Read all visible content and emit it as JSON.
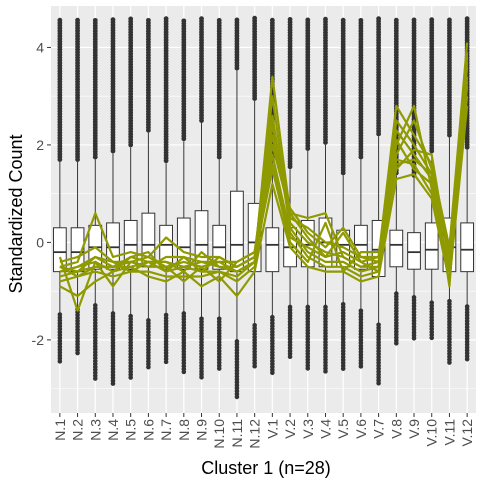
{
  "chart_data": {
    "type": "box-with-lines",
    "xlabel": "Cluster 1 (n=28)",
    "ylabel": "Standardized Count",
    "ylim": [
      -3.5,
      4.85
    ],
    "yticks": [
      -2,
      0,
      2,
      4
    ],
    "grid": true,
    "legend": "none",
    "colors": {
      "panel": "#ebebeb",
      "grid": "#ffffff",
      "line": "#8f9a00",
      "box_fill": "#ffffff",
      "box_stroke": "#333333",
      "outlier": "#333333"
    },
    "categories": [
      "N.1",
      "N.2",
      "N.3",
      "N.4",
      "N.5",
      "N.6",
      "N.7",
      "N.8",
      "N.9",
      "N.10",
      "N.11",
      "N.12",
      "V.1",
      "V.2",
      "V.3",
      "V.4",
      "V.5",
      "V.6",
      "V.7",
      "V.8",
      "V.9",
      "V.10",
      "V.11",
      "V.12"
    ],
    "boxes": [
      {
        "q1": -0.6,
        "median": -0.2,
        "q3": 0.3,
        "whisker_low": -2.2,
        "whisker_high": 4.6,
        "outlier_low": -2.5
      },
      {
        "q1": -0.6,
        "median": -0.2,
        "q3": 0.3,
        "whisker_low": -2.0,
        "whisker_high": 4.6,
        "outlier_low": -2.3
      },
      {
        "q1": -0.55,
        "median": -0.1,
        "q3": 0.35,
        "whisker_low": -1.9,
        "whisker_high": 4.6,
        "outlier_low": -2.8
      },
      {
        "q1": -0.55,
        "median": -0.1,
        "q3": 0.4,
        "whisker_low": -2.2,
        "whisker_high": 4.6,
        "outlier_low": -2.9
      },
      {
        "q1": -0.55,
        "median": -0.05,
        "q3": 0.45,
        "whisker_low": -2.3,
        "whisker_high": 4.6,
        "outlier_low": -2.8
      },
      {
        "q1": -0.5,
        "median": -0.05,
        "q3": 0.6,
        "whisker_low": -2.5,
        "whisker_high": 4.6,
        "outlier_low": -2.6
      },
      {
        "q1": -0.5,
        "median": -0.05,
        "q3": 0.35,
        "whisker_low": -2.3,
        "whisker_high": 4.6,
        "outlier_low": -2.5
      },
      {
        "q1": -0.55,
        "median": -0.1,
        "q3": 0.5,
        "whisker_low": -2.2,
        "whisker_high": 4.6,
        "outlier_low": -2.7
      },
      {
        "q1": -0.55,
        "median": -0.05,
        "q3": 0.65,
        "whisker_low": -2.4,
        "whisker_high": 4.6,
        "outlier_low": -2.8
      },
      {
        "q1": -0.55,
        "median": -0.1,
        "q3": 0.35,
        "whisker_low": -2.4,
        "whisker_high": 4.6,
        "outlier_low": -2.6
      },
      {
        "q1": -0.6,
        "median": -0.05,
        "q3": 1.05,
        "whisker_low": -3.2,
        "whisker_high": 4.6,
        "outlier_low": -3.2
      },
      {
        "q1": -0.6,
        "median": 0.0,
        "q3": 0.8,
        "whisker_low": -2.6,
        "whisker_high": 4.6,
        "outlier_low": -2.6
      },
      {
        "q1": -0.6,
        "median": -0.05,
        "q3": 0.3,
        "whisker_low": -2.3,
        "whisker_high": 4.6,
        "outlier_low": -2.7
      },
      {
        "q1": -0.5,
        "median": -0.1,
        "q3": 0.3,
        "whisker_low": -2.0,
        "whisker_high": 4.6,
        "outlier_low": -2.4
      },
      {
        "q1": -0.5,
        "median": -0.05,
        "q3": 0.45,
        "whisker_low": -2.0,
        "whisker_high": 4.6,
        "outlier_low": -2.6
      },
      {
        "q1": -0.5,
        "median": 0.0,
        "q3": 0.5,
        "whisker_low": -2.0,
        "whisker_high": 4.6,
        "outlier_low": -2.7
      },
      {
        "q1": -0.5,
        "median": -0.05,
        "q3": 0.25,
        "whisker_low": -1.9,
        "whisker_high": 4.6,
        "outlier_low": -2.6
      },
      {
        "q1": -0.55,
        "median": -0.05,
        "q3": 0.35,
        "whisker_low": -2.1,
        "whisker_high": 4.6,
        "outlier_low": -2.6
      },
      {
        "q1": -0.7,
        "median": -0.15,
        "q3": 0.45,
        "whisker_low": -2.5,
        "whisker_high": 4.6,
        "outlier_low": -2.9
      },
      {
        "q1": -0.5,
        "median": -0.05,
        "q3": 0.25,
        "whisker_low": -1.5,
        "whisker_high": 4.6,
        "outlier_low": -2.1
      },
      {
        "q1": -0.55,
        "median": -0.2,
        "q3": 0.2,
        "whisker_low": -1.6,
        "whisker_high": 4.6,
        "outlier_low": -2.0
      },
      {
        "q1": -0.55,
        "median": -0.15,
        "q3": 0.4,
        "whisker_low": -1.8,
        "whisker_high": 4.6,
        "outlier_low": -2.0
      },
      {
        "q1": -0.6,
        "median": -0.1,
        "q3": 0.5,
        "whisker_low": -1.7,
        "whisker_high": 4.6,
        "outlier_low": -2.5
      },
      {
        "q1": -0.6,
        "median": -0.15,
        "q3": 0.4,
        "whisker_low": -1.9,
        "whisker_high": 4.6,
        "outlier_low": -2.4
      }
    ],
    "series": [
      {
        "values": [
          -0.5,
          -0.6,
          -0.3,
          -0.5,
          -0.4,
          -0.3,
          -0.5,
          -0.4,
          -0.5,
          -0.4,
          -0.6,
          -0.4,
          3.4,
          0.6,
          0.1,
          -0.3,
          -0.2,
          -0.4,
          -0.3,
          2.8,
          2.2,
          1.6,
          -0.1,
          4.1
        ]
      },
      {
        "values": [
          -0.6,
          -0.5,
          -0.4,
          -0.6,
          -0.3,
          -0.4,
          -0.4,
          -0.5,
          -0.4,
          -0.5,
          -0.5,
          -0.3,
          3.0,
          0.4,
          0.0,
          -0.2,
          -0.3,
          -0.5,
          -0.4,
          2.5,
          2.0,
          1.4,
          -0.2,
          3.8
        ]
      },
      {
        "values": [
          -0.7,
          -0.6,
          -0.5,
          -0.5,
          -0.5,
          -0.4,
          -0.6,
          -0.5,
          -0.6,
          -0.6,
          -0.7,
          -0.4,
          2.6,
          0.3,
          -0.2,
          -0.4,
          -0.4,
          -0.6,
          -0.5,
          2.3,
          1.8,
          1.3,
          -0.3,
          3.6
        ]
      },
      {
        "values": [
          -0.4,
          -0.3,
          -0.1,
          -0.4,
          -0.4,
          -0.5,
          -0.3,
          -0.3,
          -0.4,
          -0.4,
          -0.4,
          -0.2,
          2.2,
          0.5,
          0.3,
          0.0,
          -0.1,
          -0.3,
          -0.4,
          2.0,
          2.8,
          1.1,
          -0.5,
          3.4
        ]
      },
      {
        "values": [
          -0.8,
          -0.7,
          -0.6,
          -0.7,
          -0.6,
          -0.6,
          -0.7,
          -0.7,
          -0.7,
          -0.6,
          -0.8,
          -0.5,
          1.8,
          0.2,
          -0.3,
          -0.5,
          -0.5,
          -0.7,
          -0.6,
          1.7,
          1.6,
          1.0,
          -0.6,
          3.2
        ]
      },
      {
        "values": [
          -0.5,
          -0.4,
          0.6,
          -0.3,
          -0.2,
          -0.3,
          0.1,
          -0.2,
          -0.3,
          -0.3,
          -0.5,
          -0.3,
          1.5,
          0.0,
          -0.4,
          0.4,
          -0.6,
          -0.2,
          -0.2,
          1.5,
          1.9,
          1.8,
          -0.4,
          3.0
        ]
      },
      {
        "values": [
          -0.9,
          -1.1,
          -0.8,
          -0.6,
          -0.5,
          -0.7,
          -0.8,
          -0.6,
          -0.9,
          -0.7,
          -1.1,
          -0.6,
          1.2,
          -0.1,
          -0.5,
          -0.6,
          -0.6,
          -0.8,
          -0.7,
          1.3,
          1.4,
          0.9,
          -0.8,
          2.8
        ]
      },
      {
        "values": [
          -0.3,
          -1.4,
          -0.4,
          -0.9,
          -0.4,
          -0.5,
          -0.5,
          -0.8,
          -0.5,
          -0.8,
          -0.4,
          -0.2,
          2.4,
          0.7,
          0.2,
          -0.1,
          0.3,
          -0.3,
          -0.3,
          2.1,
          1.5,
          1.2,
          -0.2,
          3.7
        ]
      },
      {
        "values": [
          -0.6,
          -0.5,
          -0.3,
          -0.4,
          -0.6,
          -0.4,
          -0.4,
          -0.6,
          -0.2,
          -0.5,
          -0.6,
          -0.4,
          2.0,
          0.6,
          0.5,
          0.6,
          -0.3,
          -0.5,
          -0.5,
          1.8,
          2.5,
          1.5,
          -0.9,
          3.9
        ]
      },
      {
        "values": [
          -0.5,
          -0.7,
          -0.5,
          -0.5,
          -0.3,
          -0.2,
          -0.6,
          -0.3,
          -0.6,
          -0.3,
          -0.5,
          -0.3,
          1.6,
          0.1,
          -0.1,
          -0.3,
          0.2,
          -0.4,
          -0.6,
          1.6,
          1.7,
          1.4,
          -0.1,
          3.3
        ]
      }
    ]
  }
}
